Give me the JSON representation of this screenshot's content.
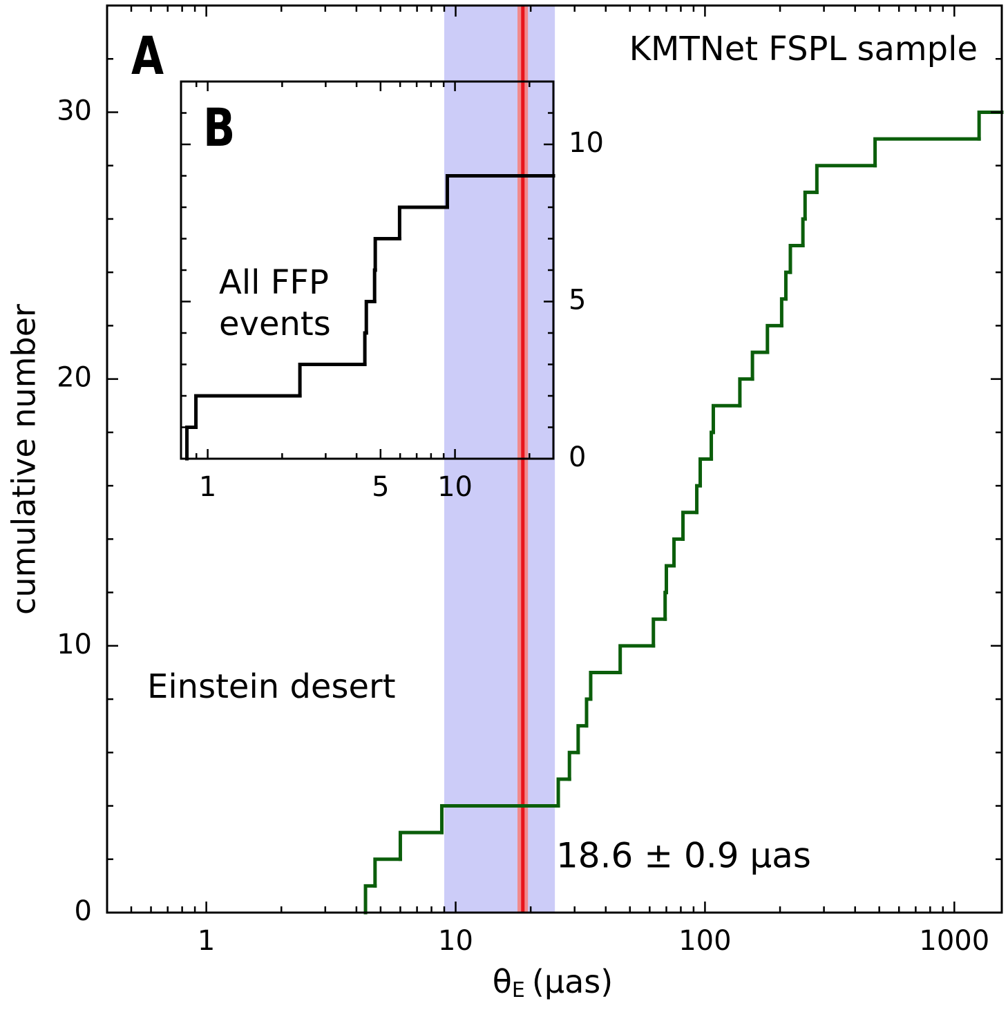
{
  "chart_data": [
    {
      "type": "step",
      "panel_label": "A",
      "title": "KMTNet FSPL sample",
      "ylabel": "cumulative number",
      "xlabel": {
        "symbol": "θ",
        "subscript": "E",
        "unit": "(μas)"
      },
      "xscale": "log",
      "x": [
        4.35,
        4.75,
        6.0,
        8.8,
        25.8,
        28.6,
        31.0,
        33.5,
        34.8,
        45.7,
        62.1,
        69.2,
        70,
        75.1,
        81.6,
        92.7,
        95.7,
        106,
        108,
        138,
        155,
        178,
        203,
        211,
        220,
        247,
        252,
        281,
        481,
        1257
      ],
      "values": [
        1,
        2,
        3,
        4,
        5,
        6,
        7,
        8,
        9,
        10,
        11,
        12,
        13,
        14,
        15,
        16,
        17,
        18,
        19,
        20,
        21,
        22,
        23,
        24,
        25,
        26,
        27,
        28,
        29,
        30
      ],
      "color": "#0b5e0b",
      "xlim": [
        0.4,
        1550
      ],
      "ylim": [
        0,
        34
      ],
      "xticks": [
        1,
        10,
        100,
        1000
      ],
      "xminor": [
        0.5,
        0.6,
        0.7,
        0.8,
        0.9,
        2,
        3,
        4,
        5,
        6,
        7,
        8,
        9,
        20,
        30,
        40,
        50,
        60,
        70,
        80,
        90,
        200,
        300,
        400,
        500,
        600,
        700,
        800,
        900
      ],
      "yticks": [
        0,
        10,
        20,
        30
      ],
      "yminor": [
        2,
        4,
        6,
        8,
        12,
        14,
        16,
        18,
        22,
        24,
        26,
        28,
        32
      ],
      "band": {
        "label": "Einstein desert",
        "range": [
          9,
          25
        ],
        "color": "#ccccf8",
        "label_color": "#6464ec"
      },
      "marker": {
        "value": 18.6,
        "error": 0.9,
        "label": "18.6 ± 0.9 μas",
        "color": "#e8141c",
        "error_color": "#f08a8c"
      }
    },
    {
      "type": "step",
      "panel_label": "B",
      "annotation": [
        "All FFP",
        "events"
      ],
      "xscale": "log",
      "x": [
        0.824,
        0.896,
        2.36,
        4.32,
        4.38,
        4.73,
        4.76,
        5.97,
        9.31
      ],
      "values": [
        1,
        2,
        3,
        4,
        5,
        6,
        7,
        8,
        9
      ],
      "color": "#000000",
      "xlim": [
        0.78,
        25
      ],
      "ylim": [
        0,
        12
      ],
      "xticks": [
        1,
        5,
        10
      ],
      "xminor": [
        0.9,
        2,
        3,
        4,
        6,
        7,
        8,
        9,
        20
      ],
      "yticks": [
        0,
        5,
        10
      ],
      "yminor": [
        1,
        2,
        3,
        4,
        6,
        7,
        8,
        9,
        11
      ],
      "yaxis": "right"
    }
  ]
}
